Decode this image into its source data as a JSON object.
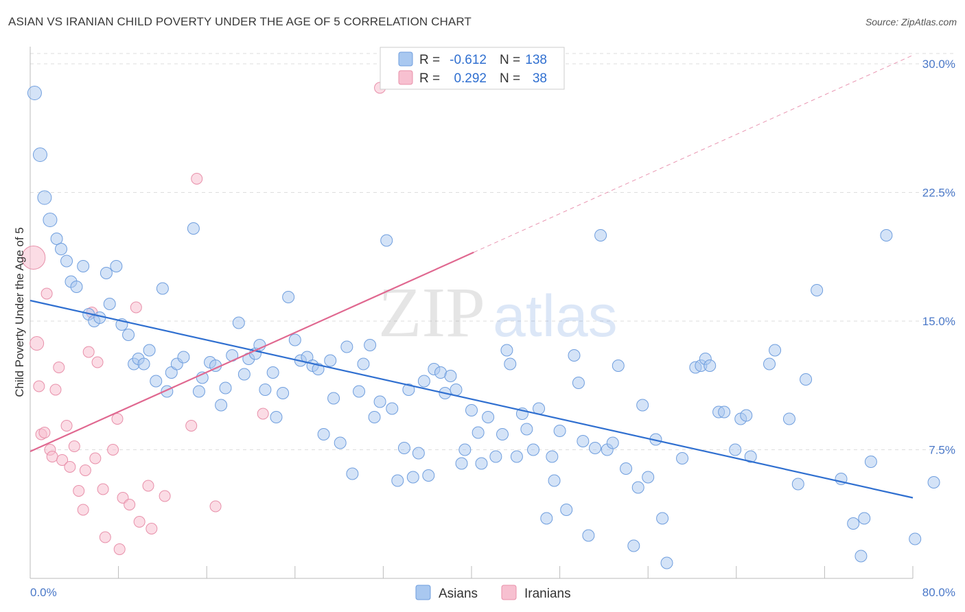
{
  "header": {
    "title": "ASIAN VS IRANIAN CHILD POVERTY UNDER THE AGE OF 5 CORRELATION CHART",
    "source": "Source: ZipAtlas.com"
  },
  "watermark": {
    "part1": "ZIP",
    "part2": "atlas"
  },
  "colors": {
    "asians_fill": "#a9c8f0",
    "asians_stroke": "#6f9ede",
    "asians_line": "#2f6fd0",
    "iranians_fill": "#f7c0d0",
    "iranians_stroke": "#e890aa",
    "iranians_line": "#e06890",
    "grid": "#dddddd",
    "tick_text": "#4a78c8"
  },
  "legend": {
    "rows": [
      {
        "r_label": "R =",
        "r_value": "-0.612",
        "n_label": "N =",
        "n_value": "138"
      },
      {
        "r_label": "R =",
        "r_value": "0.292",
        "n_label": "N =",
        "n_value": "38"
      }
    ]
  },
  "chart_data": {
    "type": "scatter",
    "title": "ASIAN VS IRANIAN CHILD POVERTY UNDER THE AGE OF 5 CORRELATION CHART",
    "xlabel": "",
    "ylabel": "Child Poverty Under the Age of 5",
    "xlim": [
      0,
      80
    ],
    "ylim": [
      0,
      31
    ],
    "x_tick_labels": [
      "0.0%",
      "80.0%"
    ],
    "y_ticks": [
      7.5,
      15.0,
      22.5,
      30.0
    ],
    "y_tick_labels": [
      "7.5%",
      "15.0%",
      "22.5%",
      "30.0%"
    ],
    "grid": true,
    "legend_position": "top-center",
    "series": [
      {
        "name": "Asians",
        "r": -0.612,
        "n": 138,
        "trend": {
          "x": [
            0,
            80
          ],
          "y": [
            16.2,
            4.7
          ],
          "dashed_from_x": null
        },
        "points": [
          [
            0.4,
            28.3
          ],
          [
            0.9,
            24.7
          ],
          [
            1.3,
            22.2
          ],
          [
            1.8,
            20.9
          ],
          [
            2.4,
            19.8
          ],
          [
            2.8,
            19.2
          ],
          [
            3.3,
            18.5
          ],
          [
            3.7,
            17.3
          ],
          [
            4.2,
            17.0
          ],
          [
            4.8,
            18.2
          ],
          [
            5.3,
            15.4
          ],
          [
            5.8,
            15.0
          ],
          [
            6.3,
            15.2
          ],
          [
            6.9,
            17.8
          ],
          [
            7.2,
            16.0
          ],
          [
            7.8,
            18.2
          ],
          [
            8.3,
            14.8
          ],
          [
            8.9,
            14.2
          ],
          [
            9.4,
            12.5
          ],
          [
            9.8,
            12.8
          ],
          [
            10.3,
            12.5
          ],
          [
            10.8,
            13.3
          ],
          [
            11.4,
            11.5
          ],
          [
            12.0,
            16.9
          ],
          [
            12.4,
            10.9
          ],
          [
            12.8,
            12.0
          ],
          [
            13.3,
            12.5
          ],
          [
            13.9,
            12.9
          ],
          [
            14.8,
            20.4
          ],
          [
            15.3,
            10.9
          ],
          [
            15.6,
            11.7
          ],
          [
            16.3,
            12.6
          ],
          [
            16.8,
            12.4
          ],
          [
            17.3,
            10.1
          ],
          [
            17.7,
            11.1
          ],
          [
            18.3,
            13.0
          ],
          [
            18.9,
            14.9
          ],
          [
            19.4,
            11.9
          ],
          [
            19.8,
            12.8
          ],
          [
            20.4,
            13.1
          ],
          [
            20.8,
            13.6
          ],
          [
            21.3,
            11.0
          ],
          [
            22.0,
            12.0
          ],
          [
            22.3,
            9.4
          ],
          [
            22.9,
            10.8
          ],
          [
            23.4,
            16.4
          ],
          [
            24.0,
            13.9
          ],
          [
            24.5,
            12.7
          ],
          [
            25.1,
            12.9
          ],
          [
            25.6,
            12.4
          ],
          [
            26.1,
            12.2
          ],
          [
            26.6,
            8.4
          ],
          [
            27.2,
            12.7
          ],
          [
            27.5,
            10.5
          ],
          [
            28.1,
            7.9
          ],
          [
            28.7,
            13.5
          ],
          [
            29.2,
            6.1
          ],
          [
            29.8,
            10.9
          ],
          [
            30.2,
            12.5
          ],
          [
            30.8,
            13.6
          ],
          [
            31.2,
            9.4
          ],
          [
            31.7,
            10.3
          ],
          [
            32.3,
            19.7
          ],
          [
            32.8,
            9.9
          ],
          [
            33.3,
            5.7
          ],
          [
            33.9,
            7.6
          ],
          [
            34.3,
            11.0
          ],
          [
            34.7,
            5.9
          ],
          [
            35.2,
            7.3
          ],
          [
            35.7,
            11.5
          ],
          [
            36.1,
            6.0
          ],
          [
            36.6,
            12.2
          ],
          [
            37.2,
            12.0
          ],
          [
            37.6,
            10.8
          ],
          [
            38.1,
            11.8
          ],
          [
            38.6,
            11.0
          ],
          [
            39.1,
            6.7
          ],
          [
            39.4,
            7.5
          ],
          [
            40.0,
            9.8
          ],
          [
            40.6,
            8.5
          ],
          [
            40.9,
            6.7
          ],
          [
            41.5,
            9.4
          ],
          [
            42.2,
            7.1
          ],
          [
            42.8,
            8.4
          ],
          [
            43.2,
            13.3
          ],
          [
            43.5,
            12.5
          ],
          [
            44.1,
            7.1
          ],
          [
            44.6,
            9.6
          ],
          [
            45.0,
            8.7
          ],
          [
            45.6,
            7.5
          ],
          [
            46.1,
            9.9
          ],
          [
            46.8,
            3.5
          ],
          [
            47.3,
            7.1
          ],
          [
            47.5,
            5.7
          ],
          [
            48.0,
            8.6
          ],
          [
            48.6,
            4.0
          ],
          [
            49.3,
            13.0
          ],
          [
            49.7,
            11.4
          ],
          [
            50.1,
            8.0
          ],
          [
            50.6,
            2.5
          ],
          [
            51.2,
            7.6
          ],
          [
            51.7,
            20.0
          ],
          [
            52.3,
            7.5
          ],
          [
            52.8,
            7.9
          ],
          [
            53.3,
            12.4
          ],
          [
            54.0,
            6.4
          ],
          [
            54.7,
            1.9
          ],
          [
            55.1,
            5.3
          ],
          [
            55.5,
            10.1
          ],
          [
            56.0,
            5.9
          ],
          [
            56.7,
            8.1
          ],
          [
            57.3,
            3.5
          ],
          [
            57.7,
            0.9
          ],
          [
            59.1,
            7.0
          ],
          [
            60.3,
            12.3
          ],
          [
            60.8,
            12.4
          ],
          [
            61.2,
            12.8
          ],
          [
            61.6,
            12.4
          ],
          [
            62.4,
            9.7
          ],
          [
            62.9,
            9.7
          ],
          [
            63.9,
            7.5
          ],
          [
            64.4,
            9.3
          ],
          [
            64.9,
            9.5
          ],
          [
            65.3,
            7.1
          ],
          [
            67.0,
            12.5
          ],
          [
            67.5,
            13.3
          ],
          [
            68.8,
            9.3
          ],
          [
            69.6,
            5.5
          ],
          [
            70.3,
            11.6
          ],
          [
            71.3,
            16.8
          ],
          [
            73.5,
            5.8
          ],
          [
            74.6,
            3.2
          ],
          [
            75.3,
            1.3
          ],
          [
            75.6,
            3.5
          ],
          [
            76.2,
            6.8
          ],
          [
            77.6,
            20.0
          ],
          [
            80.2,
            2.3
          ],
          [
            81.9,
            5.6
          ]
        ]
      },
      {
        "name": "Iranians",
        "r": 0.292,
        "n": 38,
        "trend": {
          "x": [
            0,
            80
          ],
          "y": [
            7.4,
            30.5
          ],
          "dashed_from_x": 40.2
        },
        "points": [
          [
            0.3,
            18.7
          ],
          [
            0.6,
            13.7
          ],
          [
            0.8,
            11.2
          ],
          [
            1.0,
            8.4
          ],
          [
            1.3,
            8.5
          ],
          [
            1.5,
            16.6
          ],
          [
            1.8,
            7.5
          ],
          [
            2.0,
            7.1
          ],
          [
            2.3,
            11.0
          ],
          [
            2.6,
            12.3
          ],
          [
            2.9,
            6.9
          ],
          [
            3.3,
            8.9
          ],
          [
            3.6,
            6.5
          ],
          [
            4.0,
            7.7
          ],
          [
            4.4,
            5.1
          ],
          [
            4.8,
            4.0
          ],
          [
            5.0,
            6.3
          ],
          [
            5.3,
            13.2
          ],
          [
            5.6,
            15.5
          ],
          [
            5.9,
            7.0
          ],
          [
            6.1,
            12.6
          ],
          [
            6.6,
            5.2
          ],
          [
            6.8,
            2.4
          ],
          [
            7.5,
            7.5
          ],
          [
            7.9,
            9.3
          ],
          [
            8.1,
            1.7
          ],
          [
            8.4,
            4.7
          ],
          [
            9.0,
            4.3
          ],
          [
            9.6,
            15.8
          ],
          [
            9.9,
            3.3
          ],
          [
            10.7,
            5.4
          ],
          [
            11.0,
            2.9
          ],
          [
            12.2,
            4.8
          ],
          [
            14.6,
            8.9
          ],
          [
            15.1,
            23.3
          ],
          [
            16.8,
            4.2
          ],
          [
            21.1,
            9.6
          ],
          [
            31.7,
            28.6
          ]
        ]
      }
    ]
  },
  "bottom_legend": [
    {
      "label": "Asians"
    },
    {
      "label": "Iranians"
    }
  ]
}
